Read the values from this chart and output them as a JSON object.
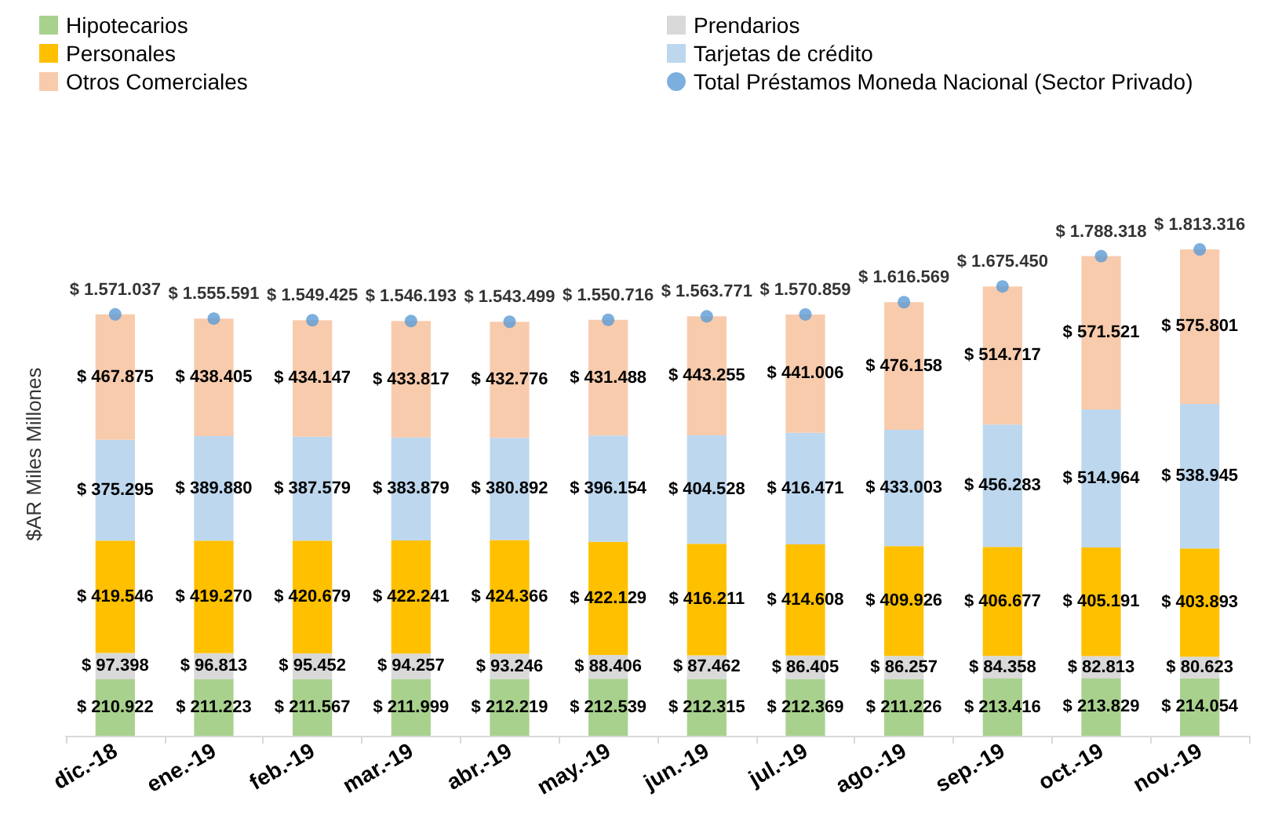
{
  "chart_data": {
    "type": "bar",
    "stacked": true,
    "ylabel": "$AR Miles Millones",
    "legend": "top",
    "grid": false,
    "tick_labels": "x",
    "categories": [
      "dic.-18",
      "ene.-19",
      "feb.-19",
      "mar.-19",
      "abr.-19",
      "may.-19",
      "jun.-19",
      "jul.-19",
      "ago.-19",
      "sep.-19",
      "oct.-19",
      "nov.-19"
    ],
    "series": [
      {
        "name": "Hipotecarios",
        "color": "#a9d18e",
        "values": [
          210922,
          211223,
          211567,
          211999,
          212219,
          212539,
          212315,
          212369,
          211226,
          213416,
          213829,
          214054
        ],
        "value_labels": [
          "$ 210.922",
          "$ 211.223",
          "$ 211.567",
          "$ 211.999",
          "$ 212.219",
          "$ 212.539",
          "$ 212.315",
          "$ 212.369",
          "$ 211.226",
          "$ 213.416",
          "$ 213.829",
          "$ 214.054"
        ]
      },
      {
        "name": "Prendarios",
        "color": "#d9d9d9",
        "values": [
          97398,
          96813,
          95452,
          94257,
          93246,
          88406,
          87462,
          86405,
          86257,
          84358,
          82813,
          80623
        ],
        "value_labels": [
          "$ 97.398",
          "$ 96.813",
          "$ 95.452",
          "$ 94.257",
          "$ 93.246",
          "$ 88.406",
          "$ 87.462",
          "$ 86.405",
          "$ 86.257",
          "$ 84.358",
          "$ 82.813",
          "$ 80.623"
        ]
      },
      {
        "name": "Personales",
        "color": "#ffc000",
        "values": [
          419546,
          419270,
          420679,
          422241,
          424366,
          422129,
          416211,
          414608,
          409926,
          406677,
          405191,
          403893
        ],
        "value_labels": [
          "$ 419.546",
          "$ 419.270",
          "$ 420.679",
          "$ 422.241",
          "$ 424.366",
          "$ 422.129",
          "$ 416.211",
          "$ 414.608",
          "$ 409.926",
          "$ 406.677",
          "$ 405.191",
          "$ 403.893"
        ]
      },
      {
        "name": "Tarjetas de crédito",
        "color": "#bdd7ee",
        "values": [
          375295,
          389880,
          387579,
          383879,
          380892,
          396154,
          404528,
          416471,
          433003,
          456283,
          514964,
          538945
        ],
        "value_labels": [
          "$ 375.295",
          "$ 389.880",
          "$ 387.579",
          "$ 383.879",
          "$ 380.892",
          "$ 396.154",
          "$ 404.528",
          "$ 416.471",
          "$ 433.003",
          "$ 456.283",
          "$ 514.964",
          "$ 538.945"
        ]
      },
      {
        "name": "Otros Comerciales",
        "color": "#f8cbad",
        "values": [
          467875,
          438405,
          434147,
          433817,
          432776,
          431488,
          443255,
          441006,
          476158,
          514717,
          571521,
          575801
        ],
        "value_labels": [
          "$ 467.875",
          "$ 438.405",
          "$ 434.147",
          "$ 433.817",
          "$ 432.776",
          "$ 431.488",
          "$ 443.255",
          "$ 441.006",
          "$ 476.158",
          "$ 514.717",
          "$ 571.521",
          "$ 575.801"
        ]
      },
      {
        "name": "Total Préstamos Moneda Nacional (Sector Privado)",
        "type": "scatter",
        "color": "#5b9bd5",
        "x": [
          "dic.-18",
          "ene.-19",
          "feb.-19",
          "mar.-19",
          "abr.-19",
          "may.-19",
          "jun.-19",
          "jul.-19",
          "ago.-19",
          "sep.-19",
          "oct.-19",
          "nov.-19"
        ],
        "values": [
          1571037,
          1555591,
          1549425,
          1546193,
          1543499,
          1550716,
          1563771,
          1570859,
          1616569,
          1675450,
          1788318,
          1813316
        ],
        "value_labels": [
          "$ 1.571.037",
          "$ 1.555.591",
          "$ 1.549.425",
          "$ 1.546.193",
          "$ 1.543.499",
          "$ 1.550.716",
          "$ 1.563.771",
          "$ 1.570.859",
          "$ 1.616.569",
          "$ 1.675.450",
          "$ 1.788.318",
          "$ 1.813.316"
        ]
      }
    ]
  }
}
